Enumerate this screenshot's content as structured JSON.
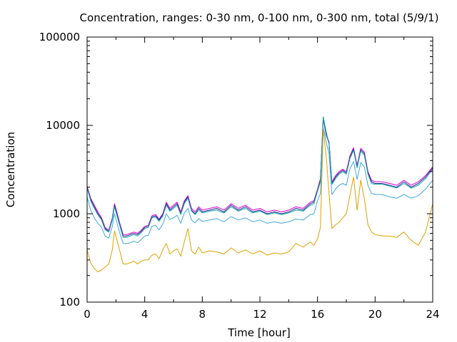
{
  "chart_data": {
    "type": "line",
    "title": "Concentration, ranges: 0-30 nm, 0-100 nm, 0-300 nm, total (5/9/1)",
    "xlabel": "Time [hour]",
    "ylabel": "Concentration",
    "xlim": [
      0,
      24
    ],
    "ylim": [
      100,
      100000
    ],
    "yscale": "log",
    "grid": false,
    "legend": "none",
    "x_ticks": [
      "0",
      "4",
      "8",
      "12",
      "16",
      "20",
      "24"
    ],
    "x_tick_values": [
      0,
      4,
      8,
      12,
      16,
      20,
      24
    ],
    "y_ticks": [
      "100",
      "1000",
      "10000",
      "100000"
    ],
    "y_tick_values": [
      100,
      1000,
      10000,
      100000
    ],
    "x": [
      0,
      0.25,
      0.5,
      0.75,
      1,
      1.25,
      1.5,
      1.75,
      1.9,
      2,
      2.25,
      2.5,
      2.75,
      3,
      3.25,
      3.5,
      3.75,
      4,
      4.25,
      4.5,
      4.75,
      5,
      5.25,
      5.5,
      5.75,
      6,
      6.25,
      6.5,
      6.75,
      7,
      7.25,
      7.5,
      7.75,
      8,
      8.5,
      9,
      9.5,
      10,
      10.5,
      11,
      11.5,
      12,
      12.5,
      13,
      13.5,
      14,
      14.5,
      15,
      15.5,
      15.75,
      16,
      16.2,
      16.4,
      16.6,
      16.8,
      17,
      17.25,
      17.5,
      17.75,
      18,
      18.25,
      18.5,
      18.75,
      19,
      19.25,
      19.5,
      19.75,
      20,
      20.5,
      21,
      21.5,
      22,
      22.5,
      23,
      23.5,
      24
    ],
    "series": [
      {
        "color": "#e000d8",
        "values": [
          2050,
          1500,
          1250,
          1050,
          900,
          700,
          650,
          900,
          1300,
          1150,
          800,
          580,
          580,
          600,
          620,
          600,
          650,
          720,
          740,
          950,
          980,
          870,
          1000,
          1350,
          1150,
          1250,
          1350,
          1050,
          1400,
          1600,
          1150,
          1050,
          1200,
          1100,
          1150,
          1200,
          1100,
          1300,
          1150,
          1250,
          1100,
          1150,
          1050,
          1100,
          1050,
          1100,
          1200,
          1150,
          1350,
          1400,
          1900,
          2500,
          12500,
          8000,
          6500,
          2300,
          2700,
          3000,
          3200,
          3000,
          4500,
          5600,
          3500,
          5500,
          5000,
          3000,
          2400,
          2300,
          2300,
          2200,
          2100,
          2400,
          2100,
          2300,
          2700,
          3400
        ]
      },
      {
        "color": "#1a2f8a",
        "values": [
          2000,
          1450,
          1200,
          1000,
          880,
          680,
          630,
          870,
          1250,
          1100,
          780,
          560,
          560,
          580,
          600,
          580,
          630,
          700,
          720,
          920,
          950,
          850,
          970,
          1300,
          1100,
          1200,
          1300,
          1000,
          1350,
          1550,
          1100,
          1000,
          1150,
          1050,
          1100,
          1150,
          1050,
          1250,
          1100,
          1200,
          1050,
          1100,
          1000,
          1050,
          1000,
          1050,
          1150,
          1100,
          1300,
          1350,
          1850,
          2400,
          12000,
          7800,
          6300,
          2200,
          2600,
          2900,
          3100,
          2900,
          4300,
          5400,
          3400,
          5300,
          4800,
          2900,
          2300,
          2200,
          2200,
          2100,
          2000,
          2300,
          2000,
          2200,
          2600,
          3300
        ]
      },
      {
        "color": "#16a7a7",
        "values": [
          1950,
          1400,
          1150,
          970,
          850,
          660,
          620,
          850,
          1200,
          1050,
          750,
          540,
          540,
          560,
          580,
          560,
          610,
          680,
          700,
          900,
          920,
          820,
          940,
          1250,
          1070,
          1150,
          1250,
          980,
          1300,
          1500,
          1070,
          980,
          1100,
          1020,
          1070,
          1100,
          1020,
          1200,
          1070,
          1150,
          1020,
          1070,
          980,
          1020,
          980,
          1020,
          1100,
          1070,
          1250,
          1300,
          1800,
          2300,
          12500,
          8500,
          6100,
          2150,
          2500,
          2800,
          3000,
          2800,
          4200,
          5200,
          3300,
          5100,
          4600,
          2800,
          2200,
          2150,
          2150,
          2050,
          1950,
          2200,
          1950,
          2100,
          2500,
          3200
        ]
      },
      {
        "color": "#40a8e0",
        "values": [
          1550,
          1100,
          900,
          780,
          700,
          560,
          530,
          720,
          1000,
          880,
          620,
          460,
          460,
          470,
          490,
          470,
          510,
          560,
          570,
          720,
          740,
          660,
          760,
          1000,
          860,
          900,
          960,
          780,
          1020,
          1150,
          850,
          790,
          880,
          820,
          850,
          880,
          810,
          930,
          850,
          900,
          810,
          850,
          780,
          810,
          780,
          810,
          870,
          850,
          980,
          1000,
          1400,
          1700,
          9500,
          6500,
          4800,
          1650,
          1900,
          2100,
          2200,
          2100,
          3200,
          3900,
          2450,
          3800,
          3400,
          2100,
          1700,
          1650,
          1650,
          1550,
          1500,
          1650,
          1500,
          1600,
          1900,
          2400
        ]
      },
      {
        "color": "#e0a000",
        "values": [
          390,
          280,
          240,
          220,
          230,
          250,
          270,
          390,
          640,
          560,
          390,
          270,
          270,
          280,
          290,
          270,
          290,
          300,
          300,
          340,
          350,
          310,
          390,
          460,
          350,
          380,
          400,
          330,
          480,
          680,
          380,
          350,
          420,
          360,
          380,
          370,
          350,
          410,
          360,
          390,
          350,
          380,
          340,
          360,
          350,
          370,
          460,
          420,
          480,
          440,
          520,
          700,
          9000,
          4500,
          1700,
          680,
          750,
          800,
          900,
          1000,
          1600,
          2600,
          1100,
          2400,
          1500,
          750,
          620,
          580,
          560,
          560,
          540,
          620,
          500,
          440,
          620,
          1300
        ]
      }
    ]
  }
}
